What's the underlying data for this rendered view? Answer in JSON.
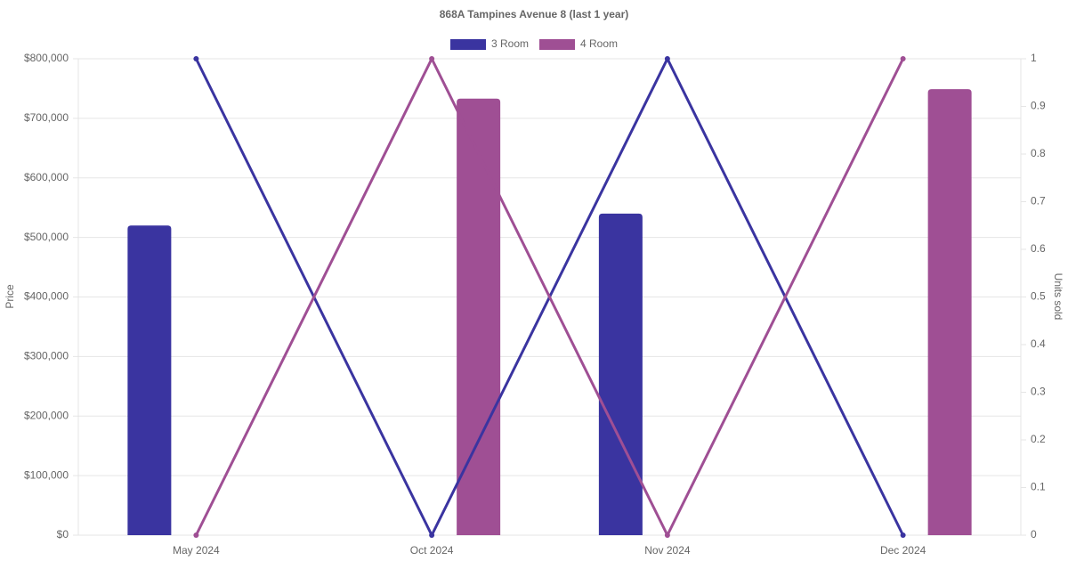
{
  "chart_data": {
    "type": "bar_line",
    "title": "868A Tampines Avenue 8 (last 1 year)",
    "categories": [
      "May 2024",
      "Oct 2024",
      "Nov 2024",
      "Dec 2024"
    ],
    "series": [
      {
        "name": "3 Room",
        "color": "#3a34a0",
        "values": [
          520000,
          null,
          540000,
          null
        ],
        "units": [
          1,
          0,
          1,
          0
        ]
      },
      {
        "name": "4 Room",
        "color": "#9f4f94",
        "values": [
          null,
          733000,
          null,
          749000
        ],
        "units": [
          0,
          1,
          0,
          1
        ]
      }
    ],
    "ylabel": "Price",
    "y2label": "Units sold",
    "ylim": [
      0,
      800000
    ],
    "yticks": [
      {
        "value": 0,
        "label": "$0"
      },
      {
        "value": 100000,
        "label": "$100,000"
      },
      {
        "value": 200000,
        "label": "$200,000"
      },
      {
        "value": 300000,
        "label": "$300,000"
      },
      {
        "value": 400000,
        "label": "$400,000"
      },
      {
        "value": 500000,
        "label": "$500,000"
      },
      {
        "value": 600000,
        "label": "$600,000"
      },
      {
        "value": 700000,
        "label": "$700,000"
      },
      {
        "value": 800000,
        "label": "$800,000"
      }
    ],
    "y2lim": [
      0,
      1
    ],
    "y2ticks": [
      0,
      0.1,
      0.2,
      0.3,
      0.4,
      0.5,
      0.6,
      0.7,
      0.8,
      0.9,
      1
    ],
    "grid": true,
    "legend": "top"
  }
}
